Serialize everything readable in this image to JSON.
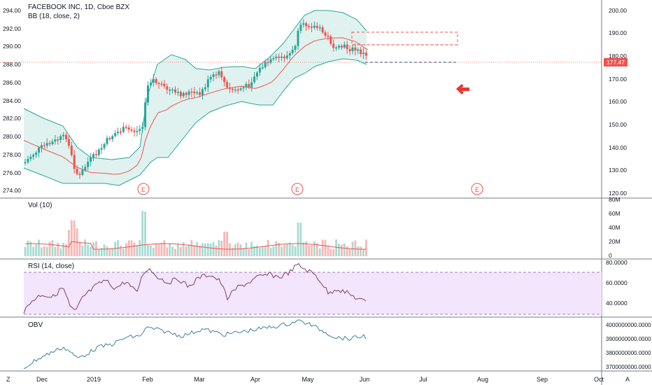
{
  "main_pane": {
    "title": "FACEBOOK INC, 1D, Cboe BZX",
    "indicator": "BB (18, close, 2)",
    "left_axis": [
      "294.00",
      "292.00",
      "290.00",
      "288.00",
      "286.00",
      "284.00",
      "282.00",
      "280.00",
      "278.00",
      "276.00",
      "274.00"
    ],
    "right_axis": [
      "200.00",
      "190.00",
      "180.00",
      "170.00",
      "160.00",
      "150.00",
      "140.00",
      "130.00",
      "120.00"
    ],
    "price_badge": "177.47",
    "earnings_marker": "E"
  },
  "volume_pane": {
    "title": "Vol (10)",
    "axis": [
      "80M",
      "60M",
      "40M",
      "20M",
      "0"
    ]
  },
  "rsi_pane": {
    "title": "RSI (14, close)",
    "axis": [
      "80.0000",
      "60.0000",
      "40.0000"
    ]
  },
  "obv_pane": {
    "title": "OBV",
    "axis": [
      "4000000000.0000",
      "3900000000.0000",
      "3800000000.0000",
      "3700000000.0000"
    ]
  },
  "time_axis": [
    "Dec",
    "2019",
    "Feb",
    "Mar",
    "Apr",
    "May",
    "Jun",
    "Jul",
    "Aug",
    "Sep",
    "Oct"
  ],
  "footer": {
    "left": "Z",
    "right": "A"
  },
  "colors": {
    "up": "#26a69a",
    "down": "#ef5350",
    "bb_band": "#26a69a",
    "bb_fill": "#e0f2ef",
    "bb_basis": "#ef5350",
    "rsi_fill": "#f3e5fb",
    "rsi_line": "#7b3f73",
    "obv_line": "#3d7fa0",
    "arrow": "#e53935",
    "text": "#131722"
  }
}
